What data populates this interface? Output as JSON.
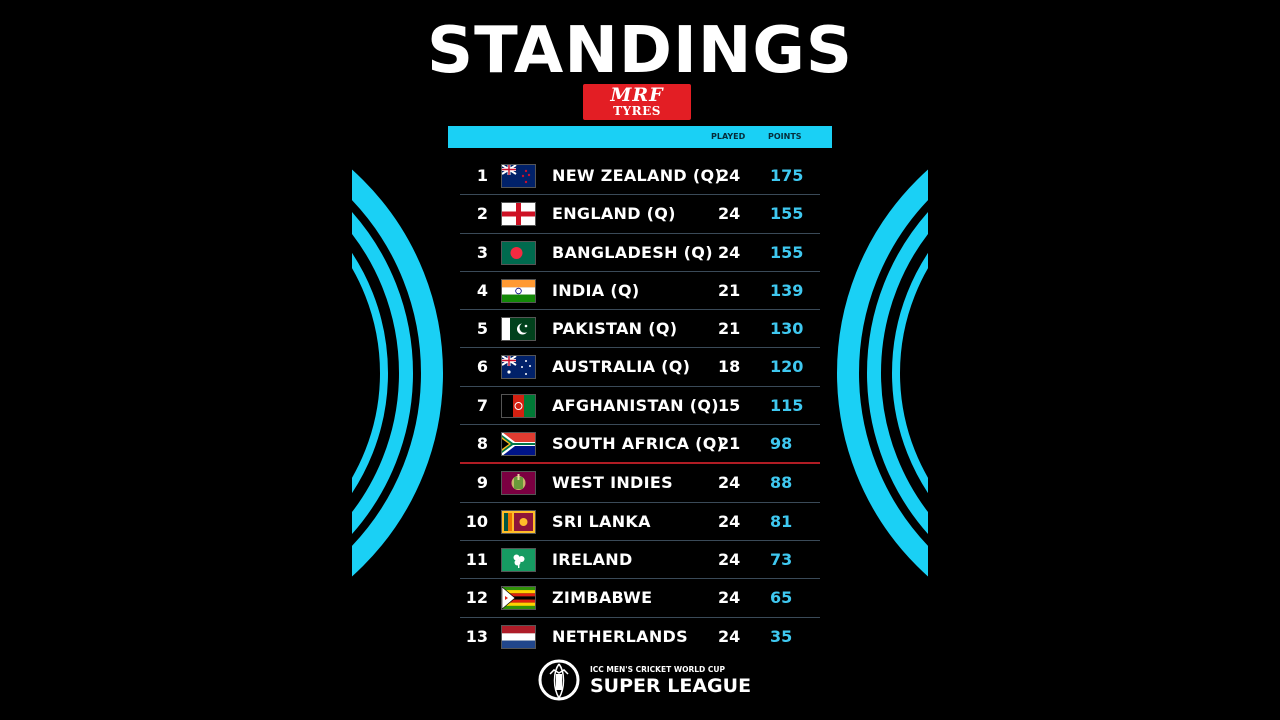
{
  "title": "STANDINGS",
  "sponsor": {
    "line1": "MRF",
    "line2": "TYRES"
  },
  "columns": {
    "played": "PLAYED",
    "points": "POINTS"
  },
  "accent_color": "#1ad0f5",
  "points_color": "#3fc8f0",
  "cutoff_color": "#b01c24",
  "standings": [
    {
      "rank": "1",
      "team": "NEW ZEALAND (Q)",
      "played": "24",
      "points": "175",
      "flag": "new-zealand-flag-icon"
    },
    {
      "rank": "2",
      "team": "ENGLAND (Q)",
      "played": "24",
      "points": "155",
      "flag": "england-flag-icon"
    },
    {
      "rank": "3",
      "team": "BANGLADESH (Q)",
      "played": "24",
      "points": "155",
      "flag": "bangladesh-flag-icon"
    },
    {
      "rank": "4",
      "team": "INDIA (Q)",
      "played": "21",
      "points": "139",
      "flag": "india-flag-icon"
    },
    {
      "rank": "5",
      "team": "PAKISTAN (Q)",
      "played": "21",
      "points": "130",
      "flag": "pakistan-flag-icon"
    },
    {
      "rank": "6",
      "team": "AUSTRALIA (Q)",
      "played": "18",
      "points": "120",
      "flag": "australia-flag-icon"
    },
    {
      "rank": "7",
      "team": "AFGHANISTAN (Q)",
      "played": "15",
      "points": "115",
      "flag": "afghanistan-flag-icon"
    },
    {
      "rank": "8",
      "team": "SOUTH AFRICA (Q)",
      "played": "21",
      "points": "98",
      "flag": "south-africa-flag-icon"
    },
    {
      "rank": "9",
      "team": "WEST INDIES",
      "played": "24",
      "points": "88",
      "flag": "west-indies-flag-icon"
    },
    {
      "rank": "10",
      "team": "SRI LANKA",
      "played": "24",
      "points": "81",
      "flag": "sri-lanka-flag-icon"
    },
    {
      "rank": "11",
      "team": "IRELAND",
      "played": "24",
      "points": "73",
      "flag": "ireland-flag-icon"
    },
    {
      "rank": "12",
      "team": "ZIMBABWE",
      "played": "24",
      "points": "65",
      "flag": "zimbabwe-flag-icon"
    },
    {
      "rank": "13",
      "team": "NETHERLANDS",
      "played": "24",
      "points": "35",
      "flag": "netherlands-flag-icon"
    }
  ],
  "footer": {
    "subtitle": "ICC MEN'S CRICKET WORLD CUP",
    "title": "SUPER LEAGUE",
    "logo": "cricket-world-cup-logo-icon"
  }
}
